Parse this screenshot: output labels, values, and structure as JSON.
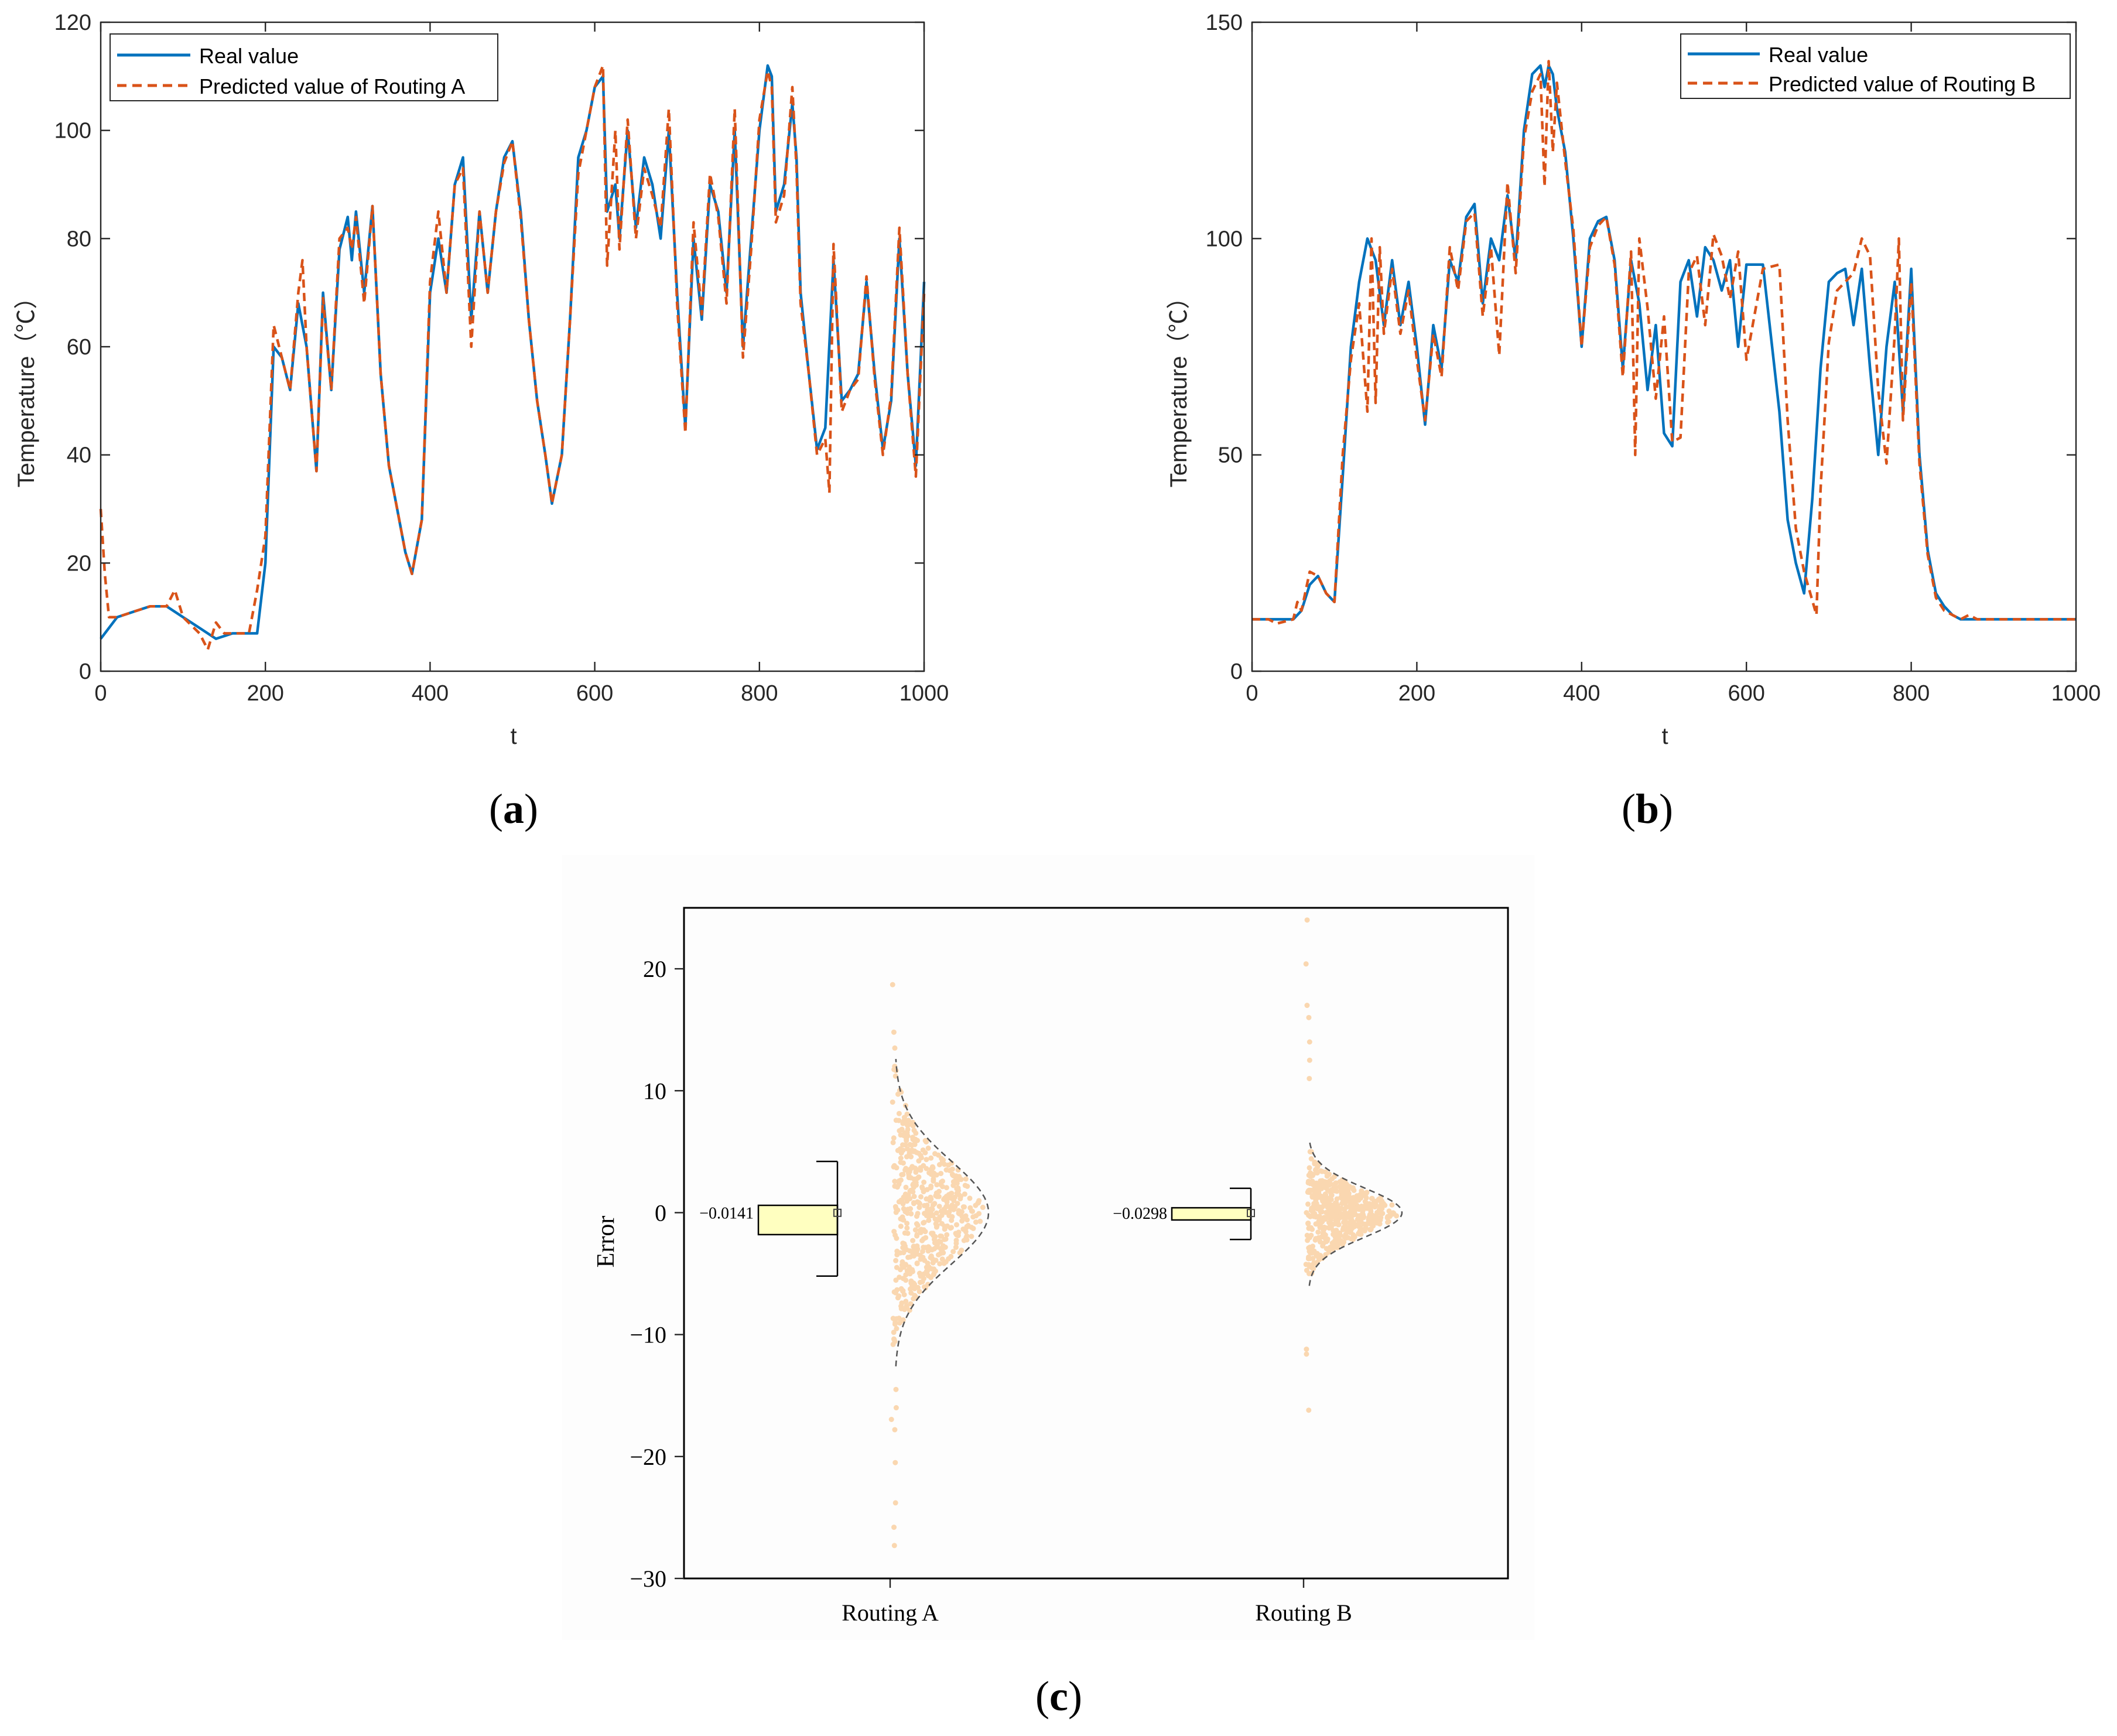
{
  "chart_data": [
    {
      "id": "a",
      "type": "line",
      "panel_label_open": "(",
      "panel_label_letter": "a",
      "panel_label_close": ")",
      "xlabel": "t",
      "ylabel": "Temperature（℃）",
      "xlim": [
        0,
        1000
      ],
      "ylim": [
        0,
        120
      ],
      "xticks": [
        0,
        200,
        400,
        600,
        800,
        1000
      ],
      "yticks": [
        0,
        20,
        40,
        60,
        80,
        100,
        120
      ],
      "legend_position": "top-left",
      "series": [
        {
          "name": "Real value",
          "color": "#0072BD",
          "style": "solid",
          "x": [
            0,
            10,
            20,
            40,
            60,
            80,
            100,
            120,
            140,
            160,
            180,
            190,
            200,
            210,
            220,
            230,
            240,
            250,
            262,
            270,
            280,
            290,
            300,
            305,
            310,
            320,
            330,
            340,
            350,
            360,
            370,
            378,
            390,
            400,
            410,
            420,
            430,
            440,
            450,
            460,
            470,
            480,
            490,
            500,
            510,
            520,
            530,
            540,
            548,
            560,
            570,
            580,
            590,
            600,
            610,
            615,
            625,
            630,
            640,
            650,
            660,
            670,
            680,
            690,
            700,
            710,
            720,
            730,
            740,
            750,
            760,
            770,
            780,
            790,
            800,
            810,
            815,
            820,
            830,
            840,
            845,
            850,
            860,
            870,
            880,
            890,
            900,
            910,
            920,
            930,
            940,
            950,
            960,
            970,
            980,
            990,
            1000
          ],
          "y": [
            6,
            8,
            10,
            11,
            12,
            12,
            10,
            8,
            6,
            7,
            7,
            7,
            20,
            60,
            58,
            52,
            68,
            60,
            37,
            70,
            52,
            78,
            84,
            76,
            85,
            70,
            86,
            55,
            38,
            30,
            22,
            18,
            28,
            70,
            80,
            70,
            90,
            95,
            65,
            85,
            70,
            85,
            95,
            98,
            85,
            65,
            50,
            40,
            31,
            40,
            65,
            95,
            100,
            108,
            110,
            85,
            90,
            80,
            100,
            82,
            95,
            90,
            80,
            100,
            70,
            45,
            80,
            65,
            90,
            85,
            70,
            100,
            60,
            80,
            100,
            112,
            110,
            85,
            90,
            105,
            95,
            70,
            55,
            41,
            45,
            76,
            50,
            52,
            55,
            72,
            55,
            41,
            50,
            80,
            55,
            38,
            72
          ]
        },
        {
          "name": "Predicted value of Routing A",
          "color": "#D95319",
          "style": "dashed",
          "x": [
            0,
            5,
            10,
            20,
            40,
            60,
            80,
            90,
            100,
            120,
            130,
            140,
            150,
            160,
            180,
            190,
            200,
            210,
            220,
            230,
            240,
            245,
            250,
            262,
            270,
            280,
            290,
            300,
            305,
            310,
            320,
            330,
            340,
            350,
            360,
            370,
            378,
            390,
            400,
            410,
            420,
            430,
            440,
            450,
            460,
            470,
            480,
            490,
            500,
            510,
            520,
            530,
            540,
            548,
            560,
            570,
            580,
            590,
            600,
            610,
            615,
            625,
            630,
            640,
            650,
            660,
            670,
            680,
            690,
            700,
            710,
            720,
            730,
            740,
            750,
            760,
            770,
            780,
            790,
            800,
            810,
            815,
            820,
            830,
            840,
            845,
            850,
            860,
            870,
            880,
            885,
            890,
            900,
            910,
            920,
            930,
            940,
            950,
            960,
            970,
            980,
            990,
            1000
          ],
          "y": [
            30,
            18,
            10,
            10,
            11,
            12,
            12,
            15,
            10,
            7,
            4,
            9,
            7,
            7,
            7,
            15,
            25,
            64,
            58,
            52,
            70,
            76,
            60,
            37,
            69,
            52,
            80,
            82,
            78,
            84,
            68,
            86,
            55,
            38,
            30,
            22,
            18,
            28,
            72,
            85,
            70,
            90,
            93,
            60,
            85,
            70,
            85,
            94,
            98,
            84,
            65,
            50,
            40,
            31,
            40,
            65,
            92,
            100,
            108,
            112,
            75,
            100,
            78,
            102,
            80,
            93,
            88,
            82,
            104,
            68,
            44,
            83,
            66,
            92,
            84,
            68,
            104,
            58,
            78,
            102,
            111,
            108,
            83,
            88,
            108,
            93,
            68,
            55,
            40,
            43,
            33,
            79,
            48,
            52,
            54,
            73,
            54,
            40,
            51,
            82,
            55,
            36,
            70
          ]
        }
      ]
    },
    {
      "id": "b",
      "type": "line",
      "panel_label_open": "(",
      "panel_label_letter": "b",
      "panel_label_close": ")",
      "xlabel": "t",
      "ylabel": "Temperature（℃）",
      "xlim": [
        0,
        1000
      ],
      "ylim": [
        0,
        150
      ],
      "xticks": [
        0,
        200,
        400,
        600,
        800,
        1000
      ],
      "yticks": [
        0,
        50,
        100,
        150
      ],
      "legend_position": "top-right",
      "series": [
        {
          "name": "Real value",
          "color": "#0072BD",
          "style": "solid",
          "x": [
            0,
            20,
            50,
            60,
            70,
            80,
            90,
            100,
            110,
            120,
            130,
            140,
            150,
            160,
            170,
            180,
            190,
            200,
            210,
            220,
            230,
            240,
            250,
            260,
            270,
            280,
            290,
            300,
            310,
            320,
            330,
            340,
            350,
            355,
            360,
            365,
            370,
            380,
            390,
            400,
            410,
            420,
            430,
            440,
            450,
            460,
            470,
            480,
            490,
            500,
            510,
            520,
            530,
            540,
            550,
            560,
            570,
            580,
            590,
            600,
            620,
            640,
            650,
            660,
            670,
            680,
            690,
            700,
            710,
            720,
            730,
            740,
            750,
            760,
            770,
            780,
            790,
            800,
            810,
            820,
            830,
            840,
            850,
            860,
            870,
            880,
            900,
            1000
          ],
          "y": [
            12,
            12,
            12,
            14,
            20,
            22,
            18,
            16,
            45,
            75,
            90,
            100,
            95,
            80,
            95,
            80,
            90,
            75,
            57,
            80,
            70,
            95,
            90,
            105,
            108,
            85,
            100,
            95,
            110,
            95,
            125,
            138,
            140,
            135,
            140,
            138,
            130,
            120,
            100,
            75,
            100,
            104,
            105,
            95,
            70,
            95,
            85,
            65,
            80,
            55,
            52,
            90,
            95,
            82,
            98,
            95,
            88,
            95,
            75,
            94,
            94,
            60,
            35,
            25,
            18,
            40,
            70,
            90,
            92,
            93,
            80,
            93,
            70,
            50,
            75,
            90,
            60,
            93,
            50,
            28,
            18,
            15,
            13,
            12,
            12,
            12,
            12,
            12
          ]
        },
        {
          "name": "Predicted value of Routing B",
          "color": "#D95319",
          "style": "dashed",
          "x": [
            0,
            20,
            30,
            50,
            55,
            60,
            70,
            80,
            90,
            100,
            110,
            120,
            130,
            140,
            145,
            150,
            155,
            160,
            170,
            180,
            190,
            200,
            210,
            220,
            230,
            240,
            250,
            260,
            270,
            280,
            290,
            300,
            310,
            320,
            330,
            340,
            350,
            355,
            360,
            365,
            370,
            380,
            390,
            400,
            410,
            420,
            430,
            440,
            450,
            460,
            465,
            470,
            480,
            490,
            500,
            510,
            520,
            530,
            540,
            550,
            560,
            570,
            580,
            590,
            600,
            620,
            640,
            650,
            660,
            670,
            685,
            690,
            700,
            710,
            720,
            730,
            740,
            750,
            760,
            770,
            780,
            785,
            790,
            800,
            810,
            820,
            830,
            840,
            850,
            860,
            870,
            880,
            890,
            900,
            1000
          ],
          "y": [
            12,
            12,
            11,
            12,
            16,
            14,
            23,
            22,
            18,
            16,
            50,
            72,
            85,
            60,
            100,
            62,
            98,
            78,
            93,
            78,
            88,
            72,
            58,
            78,
            68,
            98,
            88,
            104,
            106,
            82,
            98,
            73,
            113,
            92,
            123,
            134,
            138,
            112,
            141,
            120,
            136,
            118,
            102,
            75,
            98,
            103,
            105,
            94,
            68,
            97,
            50,
            100,
            84,
            63,
            82,
            53,
            54,
            92,
            96,
            80,
            101,
            96,
            86,
            97,
            72,
            93,
            94,
            58,
            33,
            23,
            13,
            42,
            76,
            88,
            90,
            92,
            100,
            96,
            65,
            48,
            78,
            100,
            58,
            90,
            48,
            27,
            17,
            14,
            13,
            12,
            13,
            12,
            12,
            12,
            12
          ]
        }
      ]
    },
    {
      "id": "c",
      "type": "bar",
      "panel_label_open": "(",
      "panel_label_letter": "c",
      "panel_label_close": ")",
      "xlabel": "",
      "ylabel": "Error",
      "ylim": [
        -30,
        25
      ],
      "yticks": [
        -30,
        -20,
        -10,
        0,
        10,
        20
      ],
      "categories": [
        "Routing A",
        "Routing B"
      ],
      "mean_labels": [
        "−0.0141",
        "−0.0298"
      ],
      "means": [
        -0.0141,
        -0.0298
      ],
      "box_top": [
        0.6,
        0.4
      ],
      "box_bottom": [
        -1.8,
        -0.6
      ],
      "whisker_top": [
        4.2,
        2.0
      ],
      "whisker_bottom": [
        -5.2,
        -2.2
      ],
      "scatter_spread_sd": [
        4.2,
        2.0
      ],
      "scatter_outliers": [
        [
          18.7,
          14.8,
          13.5,
          12.0,
          11.2,
          -14.5,
          -16.0,
          -17.8,
          -20.5,
          -23.8,
          -25.8,
          -27.3
        ],
        [
          24.0,
          20.4,
          17.0,
          16.0,
          14.0,
          12.5,
          11.0,
          -11.2,
          -11.6,
          -16.2
        ]
      ],
      "scatter_color": "#FAD7B0",
      "bar_fill": "#FFFFC0",
      "curve_color": "#555555"
    }
  ]
}
